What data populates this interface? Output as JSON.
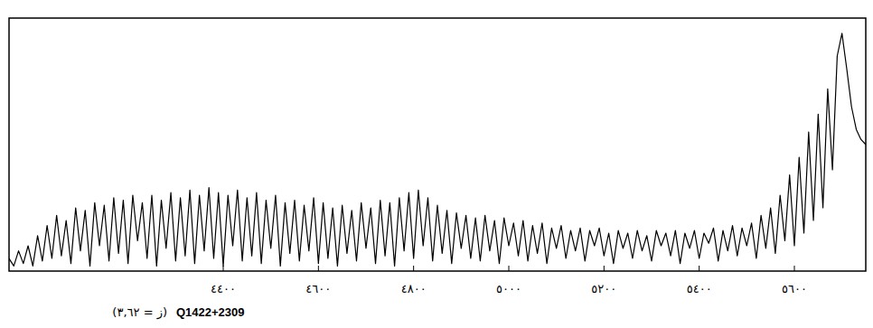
{
  "chart_data": {
    "type": "line",
    "title": "Q1422+2309",
    "subtitle": "(ز = ٣,٦٢)",
    "color": "#000000",
    "grid": false,
    "tick_labels": "x",
    "xlim": [
      3950,
      5750
    ],
    "ylim": [
      0,
      1
    ],
    "xticks": [
      {
        "value": 4400,
        "label": "٤٤٠٠"
      },
      {
        "value": 4600,
        "label": "٤٦٠٠"
      },
      {
        "value": 4800,
        "label": "٤٨٠٠"
      },
      {
        "value": 5000,
        "label": "٥٠٠٠"
      },
      {
        "value": 5200,
        "label": "٥٢٠٠"
      },
      {
        "value": 5400,
        "label": "٥٤٠٠"
      },
      {
        "value": 5600,
        "label": "٥٦٠٠"
      }
    ],
    "x": [
      3950,
      3960,
      3970,
      3980,
      3990,
      4000,
      4010,
      4020,
      4030,
      4040,
      4050,
      4060,
      4070,
      4080,
      4090,
      4100,
      4110,
      4120,
      4130,
      4140,
      4150,
      4160,
      4170,
      4180,
      4190,
      4200,
      4210,
      4220,
      4230,
      4240,
      4250,
      4260,
      4270,
      4280,
      4290,
      4300,
      4310,
      4320,
      4330,
      4340,
      4350,
      4360,
      4370,
      4380,
      4390,
      4400,
      4410,
      4420,
      4430,
      4440,
      4450,
      4460,
      4470,
      4480,
      4490,
      4500,
      4510,
      4520,
      4530,
      4540,
      4550,
      4560,
      4570,
      4580,
      4590,
      4600,
      4610,
      4620,
      4630,
      4640,
      4650,
      4660,
      4670,
      4680,
      4690,
      4700,
      4710,
      4720,
      4730,
      4740,
      4750,
      4760,
      4770,
      4780,
      4790,
      4800,
      4810,
      4820,
      4830,
      4840,
      4850,
      4860,
      4870,
      4880,
      4890,
      4900,
      4910,
      4920,
      4930,
      4940,
      4950,
      4960,
      4970,
      4980,
      4990,
      5000,
      5010,
      5020,
      5030,
      5040,
      5050,
      5060,
      5070,
      5080,
      5090,
      5100,
      5110,
      5120,
      5130,
      5140,
      5150,
      5160,
      5170,
      5180,
      5190,
      5200,
      5210,
      5220,
      5230,
      5240,
      5250,
      5260,
      5270,
      5280,
      5290,
      5300,
      5310,
      5320,
      5330,
      5340,
      5350,
      5360,
      5370,
      5380,
      5390,
      5400,
      5410,
      5420,
      5430,
      5440,
      5450,
      5460,
      5470,
      5480,
      5490,
      5500,
      5510,
      5520,
      5530,
      5540,
      5550,
      5560,
      5570,
      5580,
      5590,
      5600,
      5610,
      5620,
      5630,
      5640,
      5650,
      5660,
      5670,
      5680,
      5690,
      5700,
      5710,
      5720,
      5730,
      5740,
      5750
    ],
    "values": [
      0.05,
      0.02,
      0.08,
      0.03,
      0.1,
      0.02,
      0.14,
      0.04,
      0.18,
      0.05,
      0.22,
      0.06,
      0.2,
      0.03,
      0.25,
      0.08,
      0.24,
      0.02,
      0.27,
      0.1,
      0.26,
      0.04,
      0.29,
      0.07,
      0.28,
      0.03,
      0.3,
      0.12,
      0.27,
      0.05,
      0.3,
      0.02,
      0.28,
      0.09,
      0.31,
      0.04,
      0.29,
      0.06,
      0.32,
      0.03,
      0.3,
      0.08,
      0.33,
      0.05,
      0.31,
      0.02,
      0.3,
      0.1,
      0.32,
      0.04,
      0.29,
      0.06,
      0.31,
      0.03,
      0.28,
      0.09,
      0.3,
      0.02,
      0.27,
      0.07,
      0.28,
      0.04,
      0.26,
      0.08,
      0.29,
      0.03,
      0.27,
      0.05,
      0.25,
      0.02,
      0.26,
      0.07,
      0.24,
      0.04,
      0.27,
      0.09,
      0.25,
      0.03,
      0.28,
      0.06,
      0.27,
      0.02,
      0.29,
      0.08,
      0.31,
      0.05,
      0.32,
      0.1,
      0.29,
      0.04,
      0.26,
      0.07,
      0.24,
      0.03,
      0.23,
      0.09,
      0.22,
      0.05,
      0.21,
      0.04,
      0.22,
      0.08,
      0.2,
      0.03,
      0.21,
      0.1,
      0.19,
      0.06,
      0.2,
      0.04,
      0.18,
      0.07,
      0.19,
      0.03,
      0.17,
      0.09,
      0.18,
      0.05,
      0.16,
      0.08,
      0.17,
      0.04,
      0.16,
      0.1,
      0.17,
      0.06,
      0.15,
      0.03,
      0.16,
      0.09,
      0.15,
      0.05,
      0.16,
      0.08,
      0.14,
      0.04,
      0.16,
      0.1,
      0.15,
      0.06,
      0.16,
      0.03,
      0.15,
      0.09,
      0.16,
      0.05,
      0.15,
      0.11,
      0.17,
      0.04,
      0.16,
      0.08,
      0.18,
      0.06,
      0.17,
      0.1,
      0.19,
      0.05,
      0.22,
      0.09,
      0.25,
      0.07,
      0.3,
      0.12,
      0.38,
      0.1,
      0.45,
      0.15,
      0.55,
      0.2,
      0.62,
      0.25,
      0.72,
      0.4,
      0.85,
      0.94,
      0.8,
      0.65,
      0.56,
      0.52,
      0.5
    ]
  }
}
